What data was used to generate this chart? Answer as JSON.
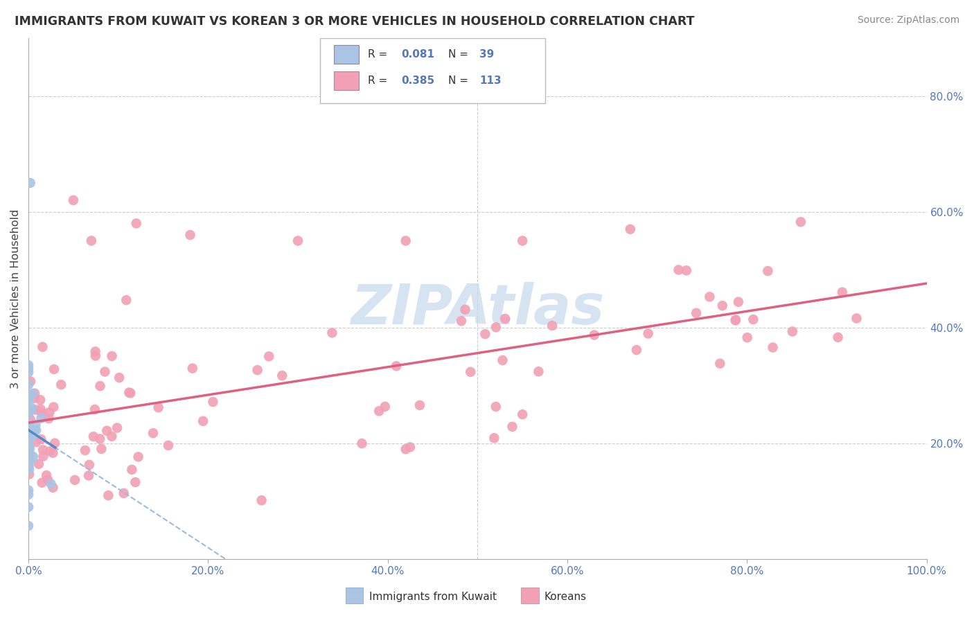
{
  "title": "IMMIGRANTS FROM KUWAIT VS KOREAN 3 OR MORE VEHICLES IN HOUSEHOLD CORRELATION CHART",
  "source": "Source: ZipAtlas.com",
  "ylabel": "3 or more Vehicles in Household",
  "xmin": 0.0,
  "xmax": 1.0,
  "ymin": 0.0,
  "ymax": 0.9,
  "x_tick_labels": [
    "0.0%",
    "20.0%",
    "40.0%",
    "60.0%",
    "80.0%",
    "100.0%"
  ],
  "y_tick_labels_right": [
    "20.0%",
    "40.0%",
    "60.0%",
    "80.0%"
  ],
  "y_tick_vals_right": [
    0.2,
    0.4,
    0.6,
    0.8
  ],
  "legend_label1": "Immigrants from Kuwait",
  "legend_label2": "Koreans",
  "R1": 0.081,
  "N1": 39,
  "R2": 0.385,
  "N2": 113,
  "color_kuwait": "#aac4e4",
  "color_korean": "#f2a0b5",
  "trend_color_kuwait": "#5588cc",
  "trend_color_korean": "#e06080",
  "dashed_color": "#99bbdd",
  "watermark": "ZIPAtlas",
  "watermark_color": "#c5d8ec"
}
